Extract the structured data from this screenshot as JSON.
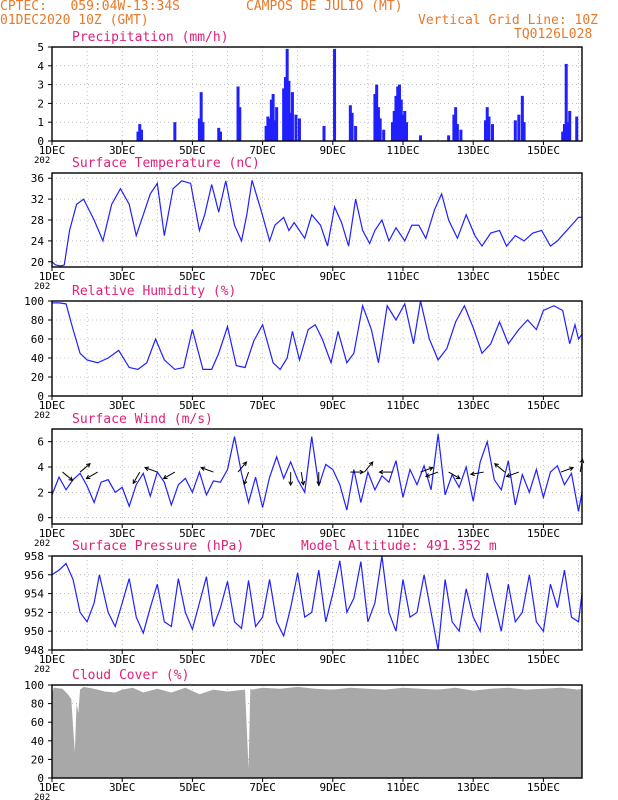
{
  "header": {
    "line1_left": "CPTEC:   059:04W-13:34S",
    "location": "CAMPOS DE JULIO (MT)",
    "line2_left": "01DEC2020 10Z (GMT)",
    "grid_note": "Vertical Grid Line: 10Z",
    "code": "TQ0126L028"
  },
  "x_axis": {
    "ticks": [
      "1DEC",
      "3DEC",
      "5DEC",
      "7DEC",
      "9DEC",
      "11DEC",
      "13DEC",
      "15DEC"
    ],
    "year_stub": "202"
  },
  "colors": {
    "title": "#e0207a",
    "header": "#e8782a",
    "series": "#2020ff",
    "cloud": "#a8a8a8",
    "grid": "#999999"
  },
  "chart_data": [
    {
      "type": "bar",
      "title": "Precipitation (mm/h)",
      "ylim": [
        0,
        5
      ],
      "yticks": [
        "0",
        "1",
        "2",
        "3",
        "4",
        "5"
      ],
      "x_range_days": [
        0,
        15.1
      ],
      "bursts": [
        {
          "day": 2.45,
          "h": 0.5
        },
        {
          "day": 2.5,
          "h": 0.9
        },
        {
          "day": 2.55,
          "h": 0.6
        },
        {
          "day": 3.5,
          "h": 1.0
        },
        {
          "day": 4.2,
          "h": 1.2
        },
        {
          "day": 4.25,
          "h": 2.6
        },
        {
          "day": 4.3,
          "h": 1.0
        },
        {
          "day": 4.75,
          "h": 0.7
        },
        {
          "day": 4.8,
          "h": 0.5
        },
        {
          "day": 5.3,
          "h": 2.9
        },
        {
          "day": 5.35,
          "h": 1.8
        },
        {
          "day": 6.1,
          "h": 0.8
        },
        {
          "day": 6.15,
          "h": 1.3
        },
        {
          "day": 6.2,
          "h": 1.2
        },
        {
          "day": 6.25,
          "h": 2.2
        },
        {
          "day": 6.3,
          "h": 2.5
        },
        {
          "day": 6.35,
          "h": 1.1
        },
        {
          "day": 6.4,
          "h": 1.8
        },
        {
          "day": 6.6,
          "h": 2.8
        },
        {
          "day": 6.65,
          "h": 3.4
        },
        {
          "day": 6.7,
          "h": 4.9
        },
        {
          "day": 6.75,
          "h": 3.2
        },
        {
          "day": 6.8,
          "h": 1.5
        },
        {
          "day": 6.85,
          "h": 2.6
        },
        {
          "day": 6.95,
          "h": 1.4
        },
        {
          "day": 7.05,
          "h": 1.2
        },
        {
          "day": 7.75,
          "h": 0.8
        },
        {
          "day": 8.05,
          "h": 4.9
        },
        {
          "day": 8.5,
          "h": 1.9
        },
        {
          "day": 8.55,
          "h": 1.5
        },
        {
          "day": 8.65,
          "h": 0.8
        },
        {
          "day": 9.2,
          "h": 2.5
        },
        {
          "day": 9.25,
          "h": 3.0
        },
        {
          "day": 9.3,
          "h": 1.8
        },
        {
          "day": 9.35,
          "h": 1.2
        },
        {
          "day": 9.45,
          "h": 0.6
        },
        {
          "day": 9.7,
          "h": 1.0
        },
        {
          "day": 9.75,
          "h": 1.6
        },
        {
          "day": 9.8,
          "h": 2.4
        },
        {
          "day": 9.85,
          "h": 2.9
        },
        {
          "day": 9.9,
          "h": 3.0
        },
        {
          "day": 9.95,
          "h": 2.2
        },
        {
          "day": 10.0,
          "h": 1.4
        },
        {
          "day": 10.05,
          "h": 1.6
        },
        {
          "day": 10.1,
          "h": 1.0
        },
        {
          "day": 10.5,
          "h": 0.3
        },
        {
          "day": 11.3,
          "h": 0.3
        },
        {
          "day": 11.45,
          "h": 1.4
        },
        {
          "day": 11.5,
          "h": 1.8
        },
        {
          "day": 11.55,
          "h": 0.9
        },
        {
          "day": 11.65,
          "h": 0.6
        },
        {
          "day": 12.35,
          "h": 1.1
        },
        {
          "day": 12.4,
          "h": 1.8
        },
        {
          "day": 12.45,
          "h": 1.3
        },
        {
          "day": 12.55,
          "h": 0.9
        },
        {
          "day": 13.2,
          "h": 1.1
        },
        {
          "day": 13.3,
          "h": 1.4
        },
        {
          "day": 13.4,
          "h": 2.4
        },
        {
          "day": 13.45,
          "h": 1.0
        },
        {
          "day": 14.55,
          "h": 0.5
        },
        {
          "day": 14.6,
          "h": 0.9
        },
        {
          "day": 14.65,
          "h": 4.1
        },
        {
          "day": 14.7,
          "h": 1.0
        },
        {
          "day": 14.75,
          "h": 1.6
        },
        {
          "day": 14.95,
          "h": 1.3
        }
      ]
    },
    {
      "type": "line",
      "title": "Surface Temperature (nC)",
      "ylim": [
        19,
        37
      ],
      "yticks": [
        "20",
        "24",
        "28",
        "32",
        "36"
      ],
      "x_range_days": [
        0,
        15.1
      ],
      "x": [
        0,
        0.1,
        0.25,
        0.35,
        0.5,
        0.7,
        0.9,
        1.2,
        1.45,
        1.7,
        1.95,
        2.2,
        2.4,
        2.6,
        2.8,
        3.0,
        3.2,
        3.45,
        3.7,
        3.95,
        4.2,
        4.35,
        4.55,
        4.75,
        4.95,
        5.2,
        5.4,
        5.55,
        5.7,
        5.95,
        6.2,
        6.35,
        6.6,
        6.75,
        6.9,
        7.2,
        7.4,
        7.65,
        7.85,
        8.05,
        8.25,
        8.45,
        8.65,
        8.85,
        9.05,
        9.2,
        9.4,
        9.6,
        9.8,
        10.05,
        10.25,
        10.45,
        10.65,
        10.9,
        11.1,
        11.3,
        11.55,
        11.8,
        12.05,
        12.25,
        12.5,
        12.75,
        12.95,
        13.2,
        13.45,
        13.7,
        13.95,
        14.2,
        14.4,
        14.6,
        14.8,
        15.0,
        15.1
      ],
      "y": [
        20,
        19.4,
        19.2,
        19.4,
        26,
        31,
        32,
        28,
        24,
        31,
        34,
        31,
        25,
        29,
        33,
        35,
        25,
        34,
        35.5,
        35,
        26,
        29,
        34.8,
        29.5,
        35.5,
        27,
        24,
        29,
        35.6,
        30,
        24,
        27,
        28.5,
        26,
        27.5,
        24.5,
        29,
        27,
        23,
        30.5,
        27.5,
        23,
        32,
        26,
        23.5,
        26,
        28,
        24,
        26.5,
        24,
        27,
        27,
        24.5,
        30,
        33,
        28,
        24.5,
        29,
        25,
        23,
        25.5,
        26,
        23,
        25,
        24,
        25.5,
        26,
        23,
        24,
        25.5,
        27,
        28.5,
        28.5
      ]
    },
    {
      "type": "line",
      "title": "Relative Humidity (%)",
      "ylim": [
        0,
        100
      ],
      "yticks": [
        "0",
        "20",
        "40",
        "60",
        "80",
        "100"
      ],
      "x_range_days": [
        0,
        15.1
      ],
      "x": [
        0,
        0.2,
        0.4,
        0.6,
        0.8,
        1.0,
        1.3,
        1.6,
        1.9,
        2.2,
        2.45,
        2.7,
        2.95,
        3.2,
        3.5,
        3.75,
        4.0,
        4.3,
        4.55,
        4.75,
        5.0,
        5.25,
        5.5,
        5.75,
        6.0,
        6.3,
        6.5,
        6.7,
        6.85,
        7.05,
        7.3,
        7.5,
        7.7,
        7.95,
        8.15,
        8.4,
        8.6,
        8.85,
        9.1,
        9.3,
        9.55,
        9.8,
        10.05,
        10.3,
        10.5,
        10.75,
        11.0,
        11.25,
        11.5,
        11.75,
        12.0,
        12.25,
        12.5,
        12.75,
        13.0,
        13.3,
        13.55,
        13.8,
        14.0,
        14.3,
        14.55,
        14.75,
        14.9,
        15.0,
        15.1
      ],
      "y": [
        98,
        98,
        97,
        70,
        45,
        38,
        35,
        40,
        48,
        30,
        28,
        35,
        60,
        38,
        28,
        30,
        70,
        28,
        28,
        45,
        73,
        32,
        30,
        58,
        75,
        35,
        28,
        40,
        68,
        38,
        70,
        75,
        60,
        35,
        68,
        35,
        45,
        95,
        70,
        35,
        95,
        80,
        97,
        55,
        100,
        60,
        38,
        50,
        78,
        95,
        72,
        45,
        55,
        78,
        55,
        70,
        80,
        70,
        90,
        95,
        90,
        55,
        75,
        60,
        65
      ]
    },
    {
      "type": "line",
      "title": "Surface Wind (m/s)",
      "ylim": [
        -0.5,
        7
      ],
      "yticks": [
        "0",
        "2",
        "4",
        "6"
      ],
      "x_range_days": [
        0,
        15.1
      ],
      "x": [
        0,
        0.2,
        0.4,
        0.6,
        0.8,
        1.0,
        1.2,
        1.4,
        1.6,
        1.8,
        2.0,
        2.2,
        2.4,
        2.6,
        2.8,
        3.0,
        3.2,
        3.4,
        3.6,
        3.8,
        4.0,
        4.2,
        4.4,
        4.6,
        4.8,
        5.0,
        5.2,
        5.4,
        5.6,
        5.8,
        6.0,
        6.2,
        6.4,
        6.6,
        6.8,
        7.0,
        7.2,
        7.4,
        7.6,
        7.8,
        8.0,
        8.2,
        8.4,
        8.6,
        8.8,
        9.0,
        9.2,
        9.4,
        9.6,
        9.8,
        10.0,
        10.2,
        10.4,
        10.6,
        10.8,
        11.0,
        11.2,
        11.4,
        11.6,
        11.8,
        12.0,
        12.2,
        12.4,
        12.6,
        12.8,
        13.0,
        13.2,
        13.4,
        13.6,
        13.8,
        14.0,
        14.2,
        14.4,
        14.6,
        14.8,
        15.0,
        15.1
      ],
      "y": [
        1.8,
        3.2,
        2.2,
        3.0,
        3.5,
        2.5,
        1.2,
        2.8,
        3.0,
        2.0,
        2.4,
        0.9,
        2.6,
        3.5,
        1.7,
        3.6,
        2.8,
        1.0,
        2.6,
        3.1,
        2.0,
        3.6,
        1.8,
        2.9,
        2.8,
        3.8,
        6.4,
        3.5,
        1.2,
        3.2,
        0.8,
        3.2,
        4.8,
        3.1,
        4.4,
        3.0,
        2.0,
        6.4,
        2.5,
        4.2,
        3.8,
        2.6,
        0.6,
        3.8,
        1.2,
        3.6,
        2.2,
        3.3,
        2.8,
        4.5,
        1.6,
        3.8,
        2.6,
        4.1,
        2.2,
        6.6,
        1.8,
        3.4,
        2.4,
        4.0,
        1.3,
        4.4,
        6.0,
        3.0,
        2.2,
        4.5,
        1.0,
        3.4,
        2.0,
        3.8,
        1.6,
        3.6,
        4.1,
        2.6,
        3.5,
        0.5,
        2.0
      ]
    },
    {
      "type": "line",
      "title": "Surface Pressure (hPa)",
      "annotation": "Model Altitude: 491.352 m",
      "ylim": [
        948,
        958
      ],
      "yticks": [
        "948",
        "950",
        "952",
        "954",
        "956",
        "958"
      ],
      "x_range_days": [
        0,
        15.1
      ],
      "x": [
        0,
        0.2,
        0.4,
        0.6,
        0.8,
        1.0,
        1.2,
        1.35,
        1.6,
        1.8,
        2.0,
        2.2,
        2.4,
        2.6,
        2.8,
        3.0,
        3.2,
        3.4,
        3.6,
        3.8,
        4.0,
        4.2,
        4.4,
        4.6,
        4.8,
        5.0,
        5.2,
        5.4,
        5.6,
        5.8,
        6.0,
        6.2,
        6.4,
        6.6,
        6.8,
        7.0,
        7.2,
        7.4,
        7.6,
        7.8,
        8.0,
        8.2,
        8.4,
        8.6,
        8.8,
        9.0,
        9.2,
        9.4,
        9.6,
        9.8,
        10.0,
        10.2,
        10.4,
        10.6,
        10.8,
        11.0,
        11.2,
        11.4,
        11.6,
        11.8,
        12.0,
        12.2,
        12.4,
        12.6,
        12.8,
        13.0,
        13.2,
        13.4,
        13.6,
        13.8,
        14.0,
        14.2,
        14.4,
        14.6,
        14.8,
        15.0,
        15.1
      ],
      "y": [
        956,
        956.5,
        957.2,
        955.5,
        952,
        951,
        953,
        956,
        952,
        950.5,
        953,
        955.6,
        951.5,
        949.8,
        952.5,
        955,
        951,
        950.5,
        955.6,
        952,
        950.2,
        953,
        955.8,
        950.5,
        952.5,
        955.3,
        951,
        950.3,
        955.4,
        950.5,
        951.5,
        955.5,
        951,
        949.5,
        952.5,
        956.2,
        951.5,
        952,
        956.5,
        951,
        954,
        957.5,
        952,
        953.5,
        957.4,
        951,
        953,
        958,
        952,
        950,
        955.5,
        951.5,
        952,
        956,
        952,
        948,
        955.5,
        951,
        950,
        954.5,
        951.5,
        950,
        956.2,
        953,
        950,
        955,
        951,
        952,
        956,
        951,
        950,
        955,
        952.5,
        956.5,
        951.5,
        951,
        954
      ]
    },
    {
      "type": "area",
      "title": "Cloud Cover (%)",
      "ylim": [
        0,
        100
      ],
      "yticks": [
        "0",
        "20",
        "40",
        "60",
        "80",
        "100"
      ],
      "x_range_days": [
        0,
        15.1
      ],
      "x": [
        0,
        0.05,
        0.3,
        0.45,
        0.55,
        0.6,
        0.65,
        0.7,
        0.75,
        0.8,
        0.9,
        1.2,
        1.5,
        1.8,
        2.0,
        2.3,
        2.6,
        3.0,
        3.4,
        3.8,
        4.2,
        4.6,
        5.0,
        5.5,
        5.6,
        5.65,
        5.7,
        6.0,
        6.5,
        7.0,
        7.5,
        8.0,
        8.5,
        9.0,
        9.5,
        10.0,
        10.5,
        11.0,
        11.5,
        12.0,
        12.5,
        13.0,
        13.5,
        14.0,
        14.5,
        15.0,
        15.1
      ],
      "y": [
        90,
        97,
        96,
        90,
        85,
        55,
        28,
        80,
        70,
        95,
        98,
        96,
        93,
        92,
        95,
        97,
        92,
        96,
        92,
        97,
        90,
        95,
        93,
        95,
        10,
        96,
        95,
        97,
        96,
        98,
        96,
        95,
        97,
        96,
        95,
        97,
        96,
        95,
        97,
        94,
        96,
        97,
        95,
        96,
        97,
        95,
        96
      ]
    }
  ]
}
